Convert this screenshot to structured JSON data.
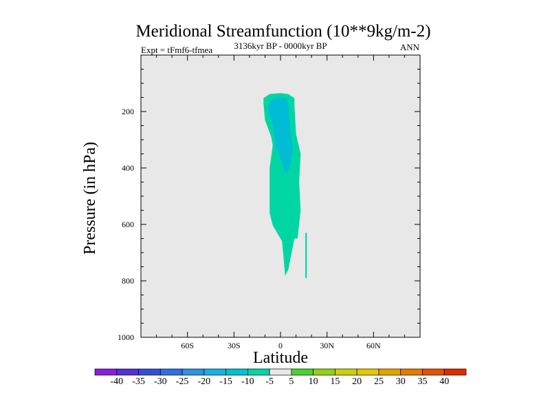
{
  "chart_data": {
    "type": "contour",
    "title": "Meridional Streamfunction (10**9kg/m-2)",
    "left_string": "Expt = tFmf6-tfmea",
    "center_string": "3136kyr BP - 0000kyr BP",
    "right_string": "ANN",
    "xlabel": "Latitude",
    "ylabel": "Pressure (in hPa)",
    "xlim": [
      -90,
      90
    ],
    "ylim": [
      1000,
      0
    ],
    "x_ticks": [
      {
        "value": -60,
        "label": "60S"
      },
      {
        "value": -30,
        "label": "30S"
      },
      {
        "value": 0,
        "label": "0"
      },
      {
        "value": 30,
        "label": "30N"
      },
      {
        "value": 60,
        "label": "60N"
      }
    ],
    "y_ticks": [
      {
        "value": 200,
        "label": "200"
      },
      {
        "value": 400,
        "label": "400"
      },
      {
        "value": 600,
        "label": "600"
      },
      {
        "value": 800,
        "label": "800"
      },
      {
        "value": 1000,
        "label": "1000"
      }
    ],
    "background_color": "#e8e8e8",
    "contour_fill": [
      {
        "level": "-10 to -5",
        "color": "#00d6a4",
        "polygon": [
          [
            -11,
            153
          ],
          [
            -7,
            138
          ],
          [
            0,
            135
          ],
          [
            5,
            138
          ],
          [
            9,
            153
          ],
          [
            9,
            180
          ],
          [
            10,
            280
          ],
          [
            13,
            350
          ],
          [
            12,
            450
          ],
          [
            13,
            550
          ],
          [
            11,
            650
          ],
          [
            9,
            650
          ],
          [
            5,
            760
          ],
          [
            3,
            782
          ],
          [
            1,
            660
          ],
          [
            -5,
            603
          ],
          [
            -7,
            560
          ],
          [
            -7,
            400
          ],
          [
            -5,
            320
          ],
          [
            -6,
            290
          ],
          [
            -10,
            230
          ],
          [
            -11,
            170
          ]
        ]
      },
      {
        "level": "-15 to -10",
        "color": "#00bcd4",
        "polygon": [
          [
            -8,
            170
          ],
          [
            -4,
            152
          ],
          [
            2,
            150
          ],
          [
            5,
            165
          ],
          [
            6,
            250
          ],
          [
            8,
            330
          ],
          [
            6,
            400
          ],
          [
            3,
            420
          ],
          [
            1,
            380
          ],
          [
            -3,
            330
          ],
          [
            -5,
            250
          ],
          [
            -8,
            200
          ]
        ]
      },
      {
        "level": "-10 to -5",
        "color": "#00d6a4",
        "polygon": [
          [
            16,
            630
          ],
          [
            17,
            630
          ],
          [
            17,
            790
          ],
          [
            16,
            790
          ]
        ]
      }
    ],
    "colorbar": {
      "labels": [
        "-40",
        "-35",
        "-30",
        "-25",
        "-20",
        "-15",
        "-10",
        "-5",
        "5",
        "10",
        "15",
        "20",
        "25",
        "30",
        "35",
        "40"
      ],
      "colors": [
        "#8c1ce0",
        "#5530d8",
        "#3350d8",
        "#2f70e0",
        "#2895e4",
        "#15b2e4",
        "#00c2d2",
        "#00d6a4",
        "#e8e8e8",
        "#49d22b",
        "#90d214",
        "#c8d20a",
        "#e6c800",
        "#e6a200",
        "#e67a00",
        "#e65000",
        "#e02a00"
      ]
    }
  }
}
